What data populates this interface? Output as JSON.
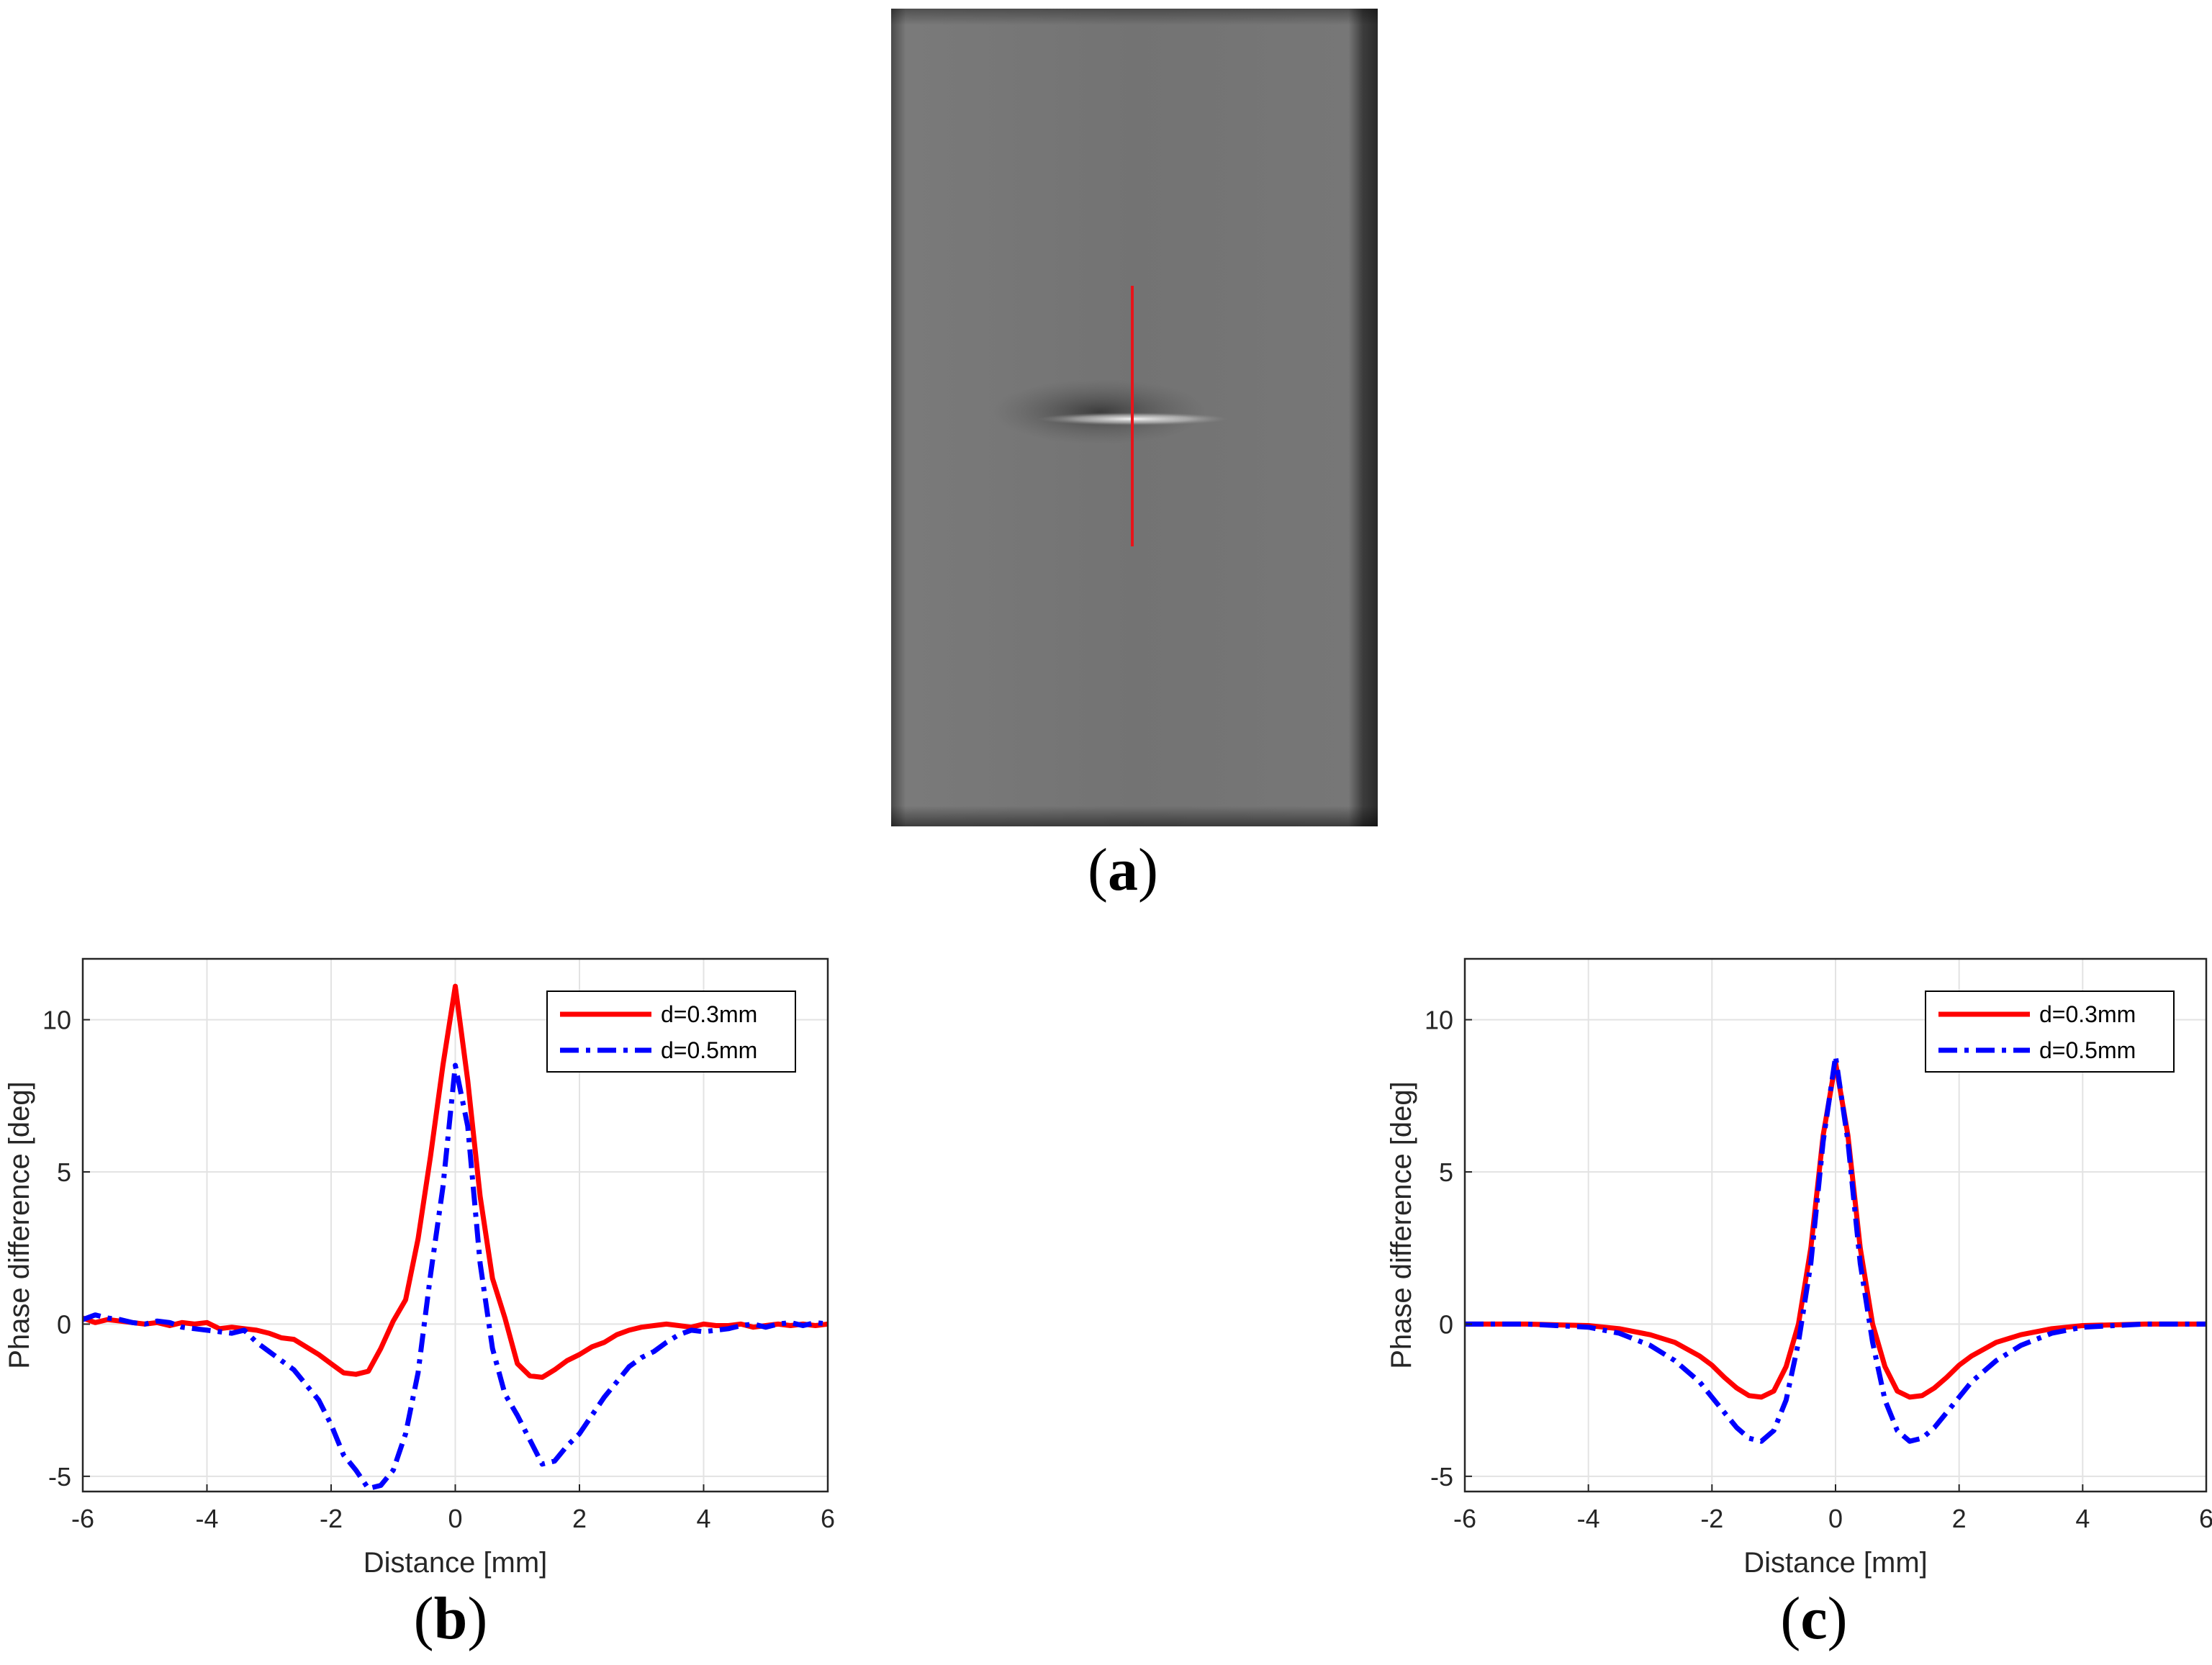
{
  "panels": {
    "a_label": "a",
    "b_label": "b",
    "c_label": "c"
  },
  "image_panel": {
    "description_icon": "grayscale-specimen-image",
    "marker_color": "#e8141a"
  },
  "colors": {
    "red": "#ff0000",
    "blue": "#0000ff",
    "grid": "#e3e3e3",
    "axis": "#262626"
  },
  "chart_data": [
    {
      "type": "line",
      "id": "b",
      "xlabel": "Distance [mm]",
      "ylabel": "Phase difference [deg]",
      "xlim": [
        -6,
        6
      ],
      "ylim": [
        -5.5,
        12
      ],
      "xticks": [
        -6,
        -4,
        -2,
        0,
        2,
        4,
        6
      ],
      "yticks": [
        -5,
        0,
        5,
        10
      ],
      "grid": true,
      "legend_position": "top-right",
      "series": [
        {
          "name": "d=0.3mm",
          "style": "solid",
          "color": "#ff0000",
          "x": [
            -6,
            -5.8,
            -5.6,
            -5.4,
            -5.2,
            -5.0,
            -4.8,
            -4.6,
            -4.4,
            -4.2,
            -4.0,
            -3.8,
            -3.6,
            -3.4,
            -3.2,
            -3.0,
            -2.8,
            -2.6,
            -2.4,
            -2.2,
            -2.0,
            -1.8,
            -1.6,
            -1.4,
            -1.2,
            -1.0,
            -0.8,
            -0.6,
            -0.4,
            -0.2,
            0.0,
            0.2,
            0.4,
            0.6,
            0.8,
            1.0,
            1.2,
            1.4,
            1.6,
            1.8,
            2.0,
            2.2,
            2.4,
            2.6,
            2.8,
            3.0,
            3.2,
            3.4,
            3.6,
            3.8,
            4.0,
            4.2,
            4.4,
            4.6,
            4.8,
            5.0,
            5.2,
            5.4,
            5.6,
            5.8,
            6.0
          ],
          "values": [
            0.2,
            0.05,
            0.15,
            0.1,
            0.05,
            0.0,
            0.05,
            -0.05,
            0.05,
            0.0,
            0.05,
            -0.15,
            -0.1,
            -0.15,
            -0.2,
            -0.3,
            -0.45,
            -0.5,
            -0.75,
            -1.0,
            -1.3,
            -1.6,
            -1.65,
            -1.55,
            -0.8,
            0.1,
            0.8,
            2.8,
            5.5,
            8.5,
            11.1,
            8.0,
            4.2,
            1.5,
            0.2,
            -1.3,
            -1.7,
            -1.75,
            -1.5,
            -1.2,
            -1.0,
            -0.75,
            -0.6,
            -0.35,
            -0.2,
            -0.1,
            -0.05,
            0.0,
            -0.05,
            -0.1,
            0.0,
            -0.05,
            -0.05,
            0.0,
            -0.1,
            -0.05,
            0.0,
            -0.05,
            0.0,
            -0.05,
            0.0
          ]
        },
        {
          "name": "d=0.5mm",
          "style": "dash-dot",
          "color": "#0000ff",
          "x": [
            -6,
            -5.8,
            -5.6,
            -5.4,
            -5.2,
            -5.0,
            -4.8,
            -4.6,
            -4.4,
            -4.2,
            -4.0,
            -3.8,
            -3.6,
            -3.4,
            -3.2,
            -3.0,
            -2.8,
            -2.6,
            -2.4,
            -2.2,
            -2.0,
            -1.8,
            -1.6,
            -1.4,
            -1.2,
            -1.0,
            -0.8,
            -0.6,
            -0.4,
            -0.2,
            0.0,
            0.2,
            0.4,
            0.6,
            0.8,
            1.0,
            1.2,
            1.4,
            1.6,
            1.8,
            2.0,
            2.2,
            2.4,
            2.6,
            2.8,
            3.0,
            3.2,
            3.4,
            3.6,
            3.8,
            4.0,
            4.2,
            4.4,
            4.6,
            4.8,
            5.0,
            5.2,
            5.4,
            5.6,
            5.8,
            6.0
          ],
          "values": [
            0.15,
            0.3,
            0.2,
            0.15,
            0.05,
            0.0,
            0.1,
            0.05,
            -0.1,
            -0.15,
            -0.2,
            -0.25,
            -0.3,
            -0.2,
            -0.6,
            -0.9,
            -1.2,
            -1.5,
            -2.0,
            -2.5,
            -3.3,
            -4.3,
            -4.8,
            -5.4,
            -5.3,
            -4.8,
            -3.6,
            -1.6,
            1.6,
            4.5,
            8.5,
            6.5,
            2.0,
            -0.8,
            -2.3,
            -3.0,
            -3.8,
            -4.6,
            -4.5,
            -4.0,
            -3.6,
            -3.0,
            -2.4,
            -1.9,
            -1.4,
            -1.1,
            -0.9,
            -0.6,
            -0.35,
            -0.2,
            -0.25,
            -0.2,
            -0.15,
            -0.05,
            0.0,
            -0.1,
            0.0,
            0.05,
            -0.05,
            0.05,
            0.0
          ]
        }
      ]
    },
    {
      "type": "line",
      "id": "c",
      "xlabel": "Distance [mm]",
      "ylabel": "Phase difference [deg]",
      "xlim": [
        -6,
        6
      ],
      "ylim": [
        -5.5,
        12
      ],
      "xticks": [
        -6,
        -4,
        -2,
        0,
        2,
        4,
        6
      ],
      "yticks": [
        -5,
        0,
        5,
        10
      ],
      "grid": true,
      "legend_position": "top-right",
      "series": [
        {
          "name": "d=0.3mm",
          "style": "solid",
          "color": "#ff0000",
          "x": [
            -6,
            -5,
            -4,
            -3.5,
            -3,
            -2.6,
            -2.2,
            -2.0,
            -1.8,
            -1.6,
            -1.4,
            -1.2,
            -1.0,
            -0.8,
            -0.6,
            -0.4,
            -0.2,
            0.0,
            0.2,
            0.4,
            0.6,
            0.8,
            1.0,
            1.2,
            1.4,
            1.6,
            1.8,
            2.0,
            2.2,
            2.6,
            3.0,
            3.5,
            4.0,
            5.0,
            6.0
          ],
          "values": [
            0.0,
            0.0,
            -0.05,
            -0.15,
            -0.35,
            -0.6,
            -1.05,
            -1.35,
            -1.75,
            -2.1,
            -2.35,
            -2.4,
            -2.2,
            -1.4,
            0.0,
            2.5,
            6.2,
            8.6,
            6.2,
            2.5,
            0.0,
            -1.4,
            -2.2,
            -2.4,
            -2.35,
            -2.1,
            -1.75,
            -1.35,
            -1.05,
            -0.6,
            -0.35,
            -0.15,
            -0.05,
            0.0,
            0.0
          ]
        },
        {
          "name": "d=0.5mm",
          "style": "dash-dot",
          "color": "#0000ff",
          "x": [
            -6,
            -5,
            -4,
            -3.5,
            -3,
            -2.6,
            -2.2,
            -2.0,
            -1.8,
            -1.6,
            -1.4,
            -1.2,
            -1.0,
            -0.8,
            -0.6,
            -0.4,
            -0.2,
            0.0,
            0.2,
            0.4,
            0.6,
            0.8,
            1.0,
            1.2,
            1.4,
            1.6,
            1.8,
            2.0,
            2.2,
            2.6,
            3.0,
            3.5,
            4.0,
            5.0,
            6.0
          ],
          "values": [
            0.0,
            0.0,
            -0.1,
            -0.3,
            -0.7,
            -1.2,
            -1.9,
            -2.4,
            -2.9,
            -3.4,
            -3.75,
            -3.85,
            -3.5,
            -2.5,
            -0.6,
            2.0,
            6.0,
            8.8,
            6.0,
            2.0,
            -0.6,
            -2.5,
            -3.5,
            -3.85,
            -3.75,
            -3.4,
            -2.9,
            -2.4,
            -1.9,
            -1.2,
            -0.7,
            -0.3,
            -0.1,
            0.0,
            0.0
          ]
        }
      ]
    }
  ]
}
